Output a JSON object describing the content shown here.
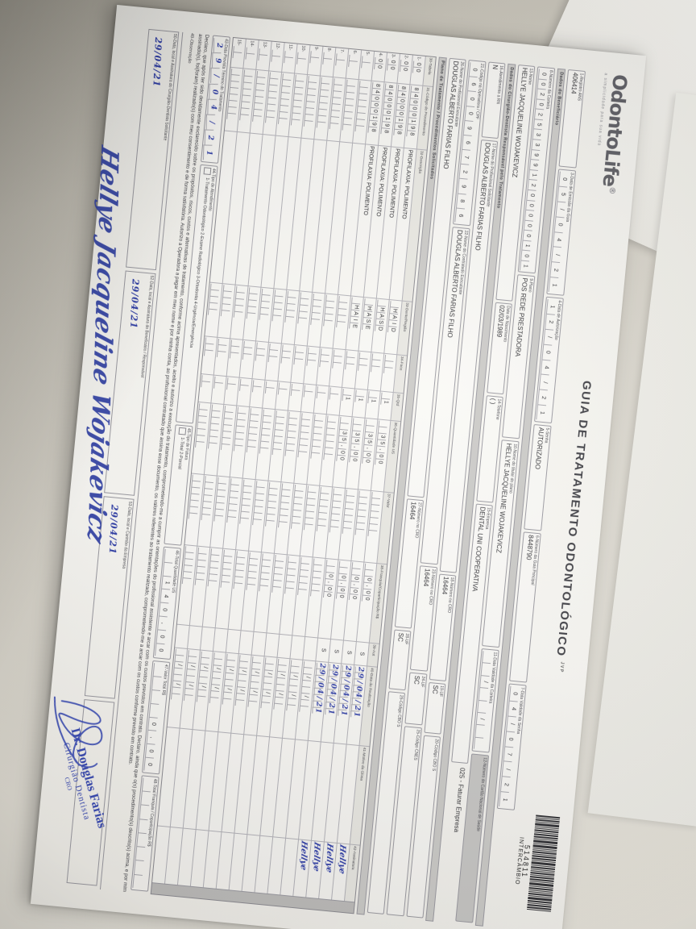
{
  "form": {
    "logo": {
      "brand": "OdontoLife",
      "reg": "®",
      "tagline": "a simplicidade para sua vida"
    },
    "title": "GUIA DE TRATAMENTO ODONTOLÓGICO",
    "title_tag": "JVP",
    "barcode": {
      "number": "514811",
      "caption": "INTERCÂMBIO"
    },
    "sections": [
      "Dados do Beneficiário",
      "Dados do Cirurgião-Dentista Responsável pelo Tratamento",
      "Plano de Tratamento / Procedimentos Solicitados"
    ],
    "rowA": [
      {
        "label": "1-Registro ANS",
        "value": "406414",
        "type": "text"
      },
      {
        "label": "3-Data de Emissão da Guia",
        "value": "05/04/21",
        "type": "comb"
      },
      {
        "label": "4-Data de Autorização",
        "value": "12/04/21",
        "type": "comb"
      },
      {
        "label": "5-Senha",
        "value": "AUTORIZADO",
        "type": "text"
      },
      {
        "label": "6-Número da Guia Principal",
        "value": "8448790",
        "type": "text"
      },
      {
        "label": "7-Data Validade da Senha",
        "value": "04/07/21",
        "type": "comb"
      }
    ],
    "rowB": [
      {
        "label": "8-Número da Carteira",
        "value": "00202533991200000101",
        "type": "comb"
      },
      {
        "label": "9-Plano",
        "value": "POS REDE PRESTADORA",
        "type": "text"
      },
      {
        "label": "10-Nome do titular do plano",
        "value": "HELLYE JACQUELINE WOJAKEVICZ",
        "type": "text"
      },
      {
        "label": "11-Data Validade da Carteira",
        "value": "  /  /  ",
        "type": "comb"
      },
      {
        "label": "12-Número do Cartão Nacional de Saúde",
        "value": "",
        "type": "shaded"
      }
    ],
    "rowC": [
      {
        "label": "13-Nome",
        "value": "HELLYE JACQUELINE WOJAKEVICZ",
        "type": "text"
      },
      {
        "label": "Data de Nascimento",
        "value": "02/03/1989",
        "type": "text"
      },
      {
        "label": "14-Telefone",
        "value": "(      )",
        "type": "text"
      },
      {
        "label": "15-Empresa",
        "value": "DENTAL UNI COOPERATIVA",
        "type": "text"
      },
      {
        "label": "",
        "value": "025 - Faturar Empresa",
        "type": "note"
      }
    ],
    "rowD": [
      {
        "label": "16-Atendimento a RN",
        "value": "N",
        "type": "text"
      },
      {
        "label": "17-Nome do Profissional Solicitante",
        "value": "DOUGLAS ALBERTO FARIAS FILHO",
        "type": "text"
      },
      {
        "label": "18-Número no CRO",
        "value": "16464",
        "type": "text"
      },
      {
        "label": "19-UF",
        "value": "SC",
        "type": "text"
      },
      {
        "label": "20-Código CBO S",
        "value": "",
        "type": "text"
      }
    ],
    "rowE": [
      {
        "label": "21-Código na Operadora / CPF",
        "value": "06009672986",
        "type": "comb"
      },
      {
        "label": "22-Nome do Contratado Executante",
        "value": "DOUGLAS ALBERTO FARIAS FILHO",
        "type": "text"
      },
      {
        "label": "23-Número no CRO",
        "value": "16464",
        "type": "text"
      },
      {
        "label": "24-UF",
        "value": "SC",
        "type": "text"
      },
      {
        "label": "25-Código CNES",
        "value": "",
        "type": "text"
      }
    ],
    "rowF": [
      {
        "label": "26-Nome do Profissional Executante",
        "value": "DOUGLAS ALBERTO FARIAS FILHO",
        "type": "text"
      },
      {
        "label": "27-Número no CRO",
        "value": "16464",
        "type": "text"
      },
      {
        "label": "28-UF",
        "value": "SC",
        "type": "text"
      },
      {
        "label": "29-Código CBO S",
        "value": "",
        "type": "text"
      }
    ],
    "table": {
      "headers": [
        "30-Tabela",
        "31-Código do Procedimento",
        "32-Descrição",
        "33-Dente/Região",
        "34-Face",
        "35-Qtd",
        "36-Quantidade US",
        "37-Valor",
        "38-Franquia/Coparticipação R$",
        "39-Aut",
        "40-Data de Realização",
        "41-Motivo da Glosa",
        "42-Assinatura"
      ],
      "rows": [
        {
          "n": "1",
          "tabela": "00",
          "codigo": "84000198",
          "desc": "PROFILAXIA: POLIMENTO",
          "dente": "HAID",
          "face": "",
          "qtd": "1",
          "us": "35,00",
          "valor": "",
          "franquia": "0,00",
          "aut": "S",
          "data": "29/04/21",
          "glosa": "",
          "ass": "Hellye"
        },
        {
          "n": "2",
          "tabela": "00",
          "codigo": "84000198",
          "desc": "PROFILAXIA: POLIMENTO",
          "dente": "HASD",
          "face": "",
          "qtd": "1",
          "us": "35,00",
          "valor": "",
          "franquia": "0,00",
          "aut": "S",
          "data": "29/04/21",
          "glosa": "",
          "ass": "Hellye"
        },
        {
          "n": "3",
          "tabela": "00",
          "codigo": "84000198",
          "desc": "PROFILAXIA: POLIMENTO",
          "dente": "HASE",
          "face": "",
          "qtd": "1",
          "us": "35,00",
          "valor": "",
          "franquia": "0,00",
          "aut": "S",
          "data": "29/04/21",
          "glosa": "",
          "ass": "Hellye"
        },
        {
          "n": "4",
          "tabela": "00",
          "codigo": "84000198",
          "desc": "PROFILAXIA: POLIMENTO",
          "dente": "HAIE",
          "face": "",
          "qtd": "1",
          "us": "35,00",
          "valor": "",
          "franquia": "0,00",
          "aut": "S",
          "data": "29/04/21",
          "glosa": "",
          "ass": "Hellye"
        },
        {
          "n": "5"
        },
        {
          "n": "6"
        },
        {
          "n": "7"
        },
        {
          "n": "8"
        },
        {
          "n": "9"
        },
        {
          "n": "10"
        },
        {
          "n": "11"
        },
        {
          "n": "12"
        },
        {
          "n": "13"
        },
        {
          "n": "14"
        },
        {
          "n": "15"
        }
      ]
    },
    "footer": [
      {
        "label": "43-Data Prevista Término do Tratamento",
        "value": "29/04/21",
        "type": "combhw"
      },
      {
        "label": "44-Tipo de Atendimento",
        "value": "1-Tratamento Odontológico   2-Exame Radiológico   3-Ortodontia   4-Urgência/Emergência",
        "type": "opts"
      },
      {
        "label": "45-Tipo de Fatura",
        "value": "1-Total   2-Parcial",
        "type": "opts"
      },
      {
        "label": "46-Total Quantidade US",
        "value": "140,00",
        "type": "comb"
      },
      {
        "label": "47-Valor Total R$",
        "value": "0,00",
        "type": "comb"
      },
      {
        "label": "48-Total Franquia / Coparticipação R$",
        "value": "",
        "type": "comb"
      }
    ],
    "declaration": "Declaro, que após ter sido devidamente esclarecido sobre os propósitos, riscos, custos e alternativas de tratamento, conforme acima apresentados, aceito e autorizo a execução do tratamento, comprometendo-me a cumprir as orientações do profissional assistente e arcar com os custos previstos em contrato. Declaro, ainda que o(s) procedimento(s) descrito(s) acima, e por mim assinado(s), foi(foram) realizado(s) com meu consentimento e de forma satisfatória. Autorizo a Operadora a pagar em meu nome e por minha conta, ao profissional contratado que assina esse documento, os valores referentes ao tratamento realizado, comprometendo-me a arcar com os custos conforme previsto em contrato.",
    "obs_label": "49-Observação",
    "sign_boxes": [
      {
        "label": "50-Data, local e Assinatura do Cirurgião-Dentista Solicitante",
        "value": "29/04/21"
      },
      {
        "label": "52-Data, local e Assinatura do Beneficiário / Responsável",
        "value": "29/04/21"
      },
      {
        "label": "53-Data, local e Carimbo da Empresa",
        "value": "29/04/21"
      },
      {
        "label": "",
        "value": ""
      }
    ],
    "stamp": {
      "line1": "Dr. Douglas Farias",
      "line2": "Cirurgião Dentista",
      "line3": "CRO"
    },
    "big_signature": "Hellye Jacqueline Wojakevicz"
  }
}
